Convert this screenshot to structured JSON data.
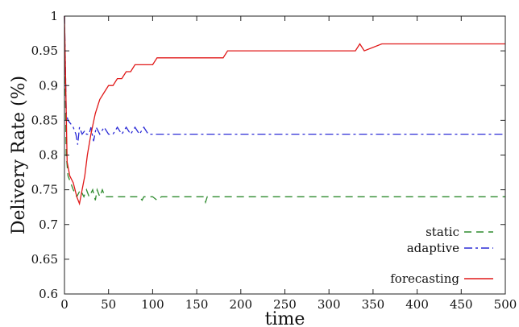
{
  "chart_data": {
    "type": "line",
    "title": "",
    "xlabel": "time",
    "ylabel": "Delivery Rate (%)",
    "xlim": [
      0,
      500
    ],
    "ylim": [
      0.6,
      1.0
    ],
    "x_ticks": [
      "0",
      "50",
      "100",
      "150",
      "200",
      "250",
      "300",
      "350",
      "400",
      "450",
      "500"
    ],
    "y_ticks": [
      "0.6",
      "0.65",
      "0.7",
      "0.75",
      "0.8",
      "0.85",
      "0.9",
      "0.95",
      "1"
    ],
    "grid": false,
    "legend_position": "bottom-right",
    "series": [
      {
        "name": "static",
        "color": "#2e8b2e",
        "dash": "dashed",
        "x": [
          0,
          2,
          4,
          7,
          10,
          14,
          18,
          22,
          25,
          28,
          32,
          35,
          37,
          40,
          43,
          46,
          50,
          55,
          60,
          65,
          70,
          75,
          80,
          85,
          88,
          90,
          95,
          100,
          105,
          110,
          130,
          150,
          158,
          160,
          162,
          170,
          200,
          250,
          300,
          350,
          400,
          450,
          500
        ],
        "y": [
          1.0,
          0.8,
          0.77,
          0.76,
          0.75,
          0.74,
          0.75,
          0.74,
          0.75,
          0.74,
          0.75,
          0.735,
          0.75,
          0.74,
          0.75,
          0.74,
          0.74,
          0.74,
          0.74,
          0.74,
          0.74,
          0.74,
          0.74,
          0.74,
          0.735,
          0.74,
          0.74,
          0.74,
          0.735,
          0.74,
          0.74,
          0.74,
          0.74,
          0.732,
          0.74,
          0.74,
          0.74,
          0.74,
          0.74,
          0.74,
          0.74,
          0.74,
          0.74
        ]
      },
      {
        "name": "adaptive",
        "color": "#2b2bd6",
        "dash": "dashdot",
        "x": [
          0,
          2,
          4,
          7,
          10,
          13,
          15,
          17,
          20,
          23,
          25,
          28,
          30,
          33,
          36,
          40,
          45,
          50,
          55,
          60,
          65,
          70,
          75,
          80,
          85,
          90,
          95,
          100,
          150,
          200,
          300,
          400,
          500
        ],
        "y": [
          1.0,
          0.86,
          0.85,
          0.845,
          0.84,
          0.83,
          0.815,
          0.84,
          0.83,
          0.835,
          0.83,
          0.83,
          0.84,
          0.82,
          0.84,
          0.83,
          0.84,
          0.83,
          0.83,
          0.84,
          0.83,
          0.84,
          0.83,
          0.84,
          0.83,
          0.84,
          0.83,
          0.83,
          0.83,
          0.83,
          0.83,
          0.83,
          0.83
        ]
      },
      {
        "name": "forecasting",
        "color": "#e01818",
        "dash": "solid",
        "x": [
          0,
          3,
          6,
          10,
          14,
          17,
          20,
          23,
          26,
          30,
          35,
          40,
          45,
          50,
          55,
          60,
          65,
          70,
          75,
          80,
          90,
          100,
          105,
          120,
          150,
          180,
          185,
          200,
          250,
          300,
          330,
          335,
          340,
          360,
          400,
          450,
          500
        ],
        "y": [
          1.0,
          0.79,
          0.77,
          0.76,
          0.74,
          0.73,
          0.75,
          0.77,
          0.8,
          0.83,
          0.86,
          0.88,
          0.89,
          0.9,
          0.9,
          0.91,
          0.91,
          0.92,
          0.92,
          0.93,
          0.93,
          0.93,
          0.94,
          0.94,
          0.94,
          0.94,
          0.95,
          0.95,
          0.95,
          0.95,
          0.95,
          0.96,
          0.95,
          0.96,
          0.96,
          0.96,
          0.96
        ]
      }
    ]
  }
}
